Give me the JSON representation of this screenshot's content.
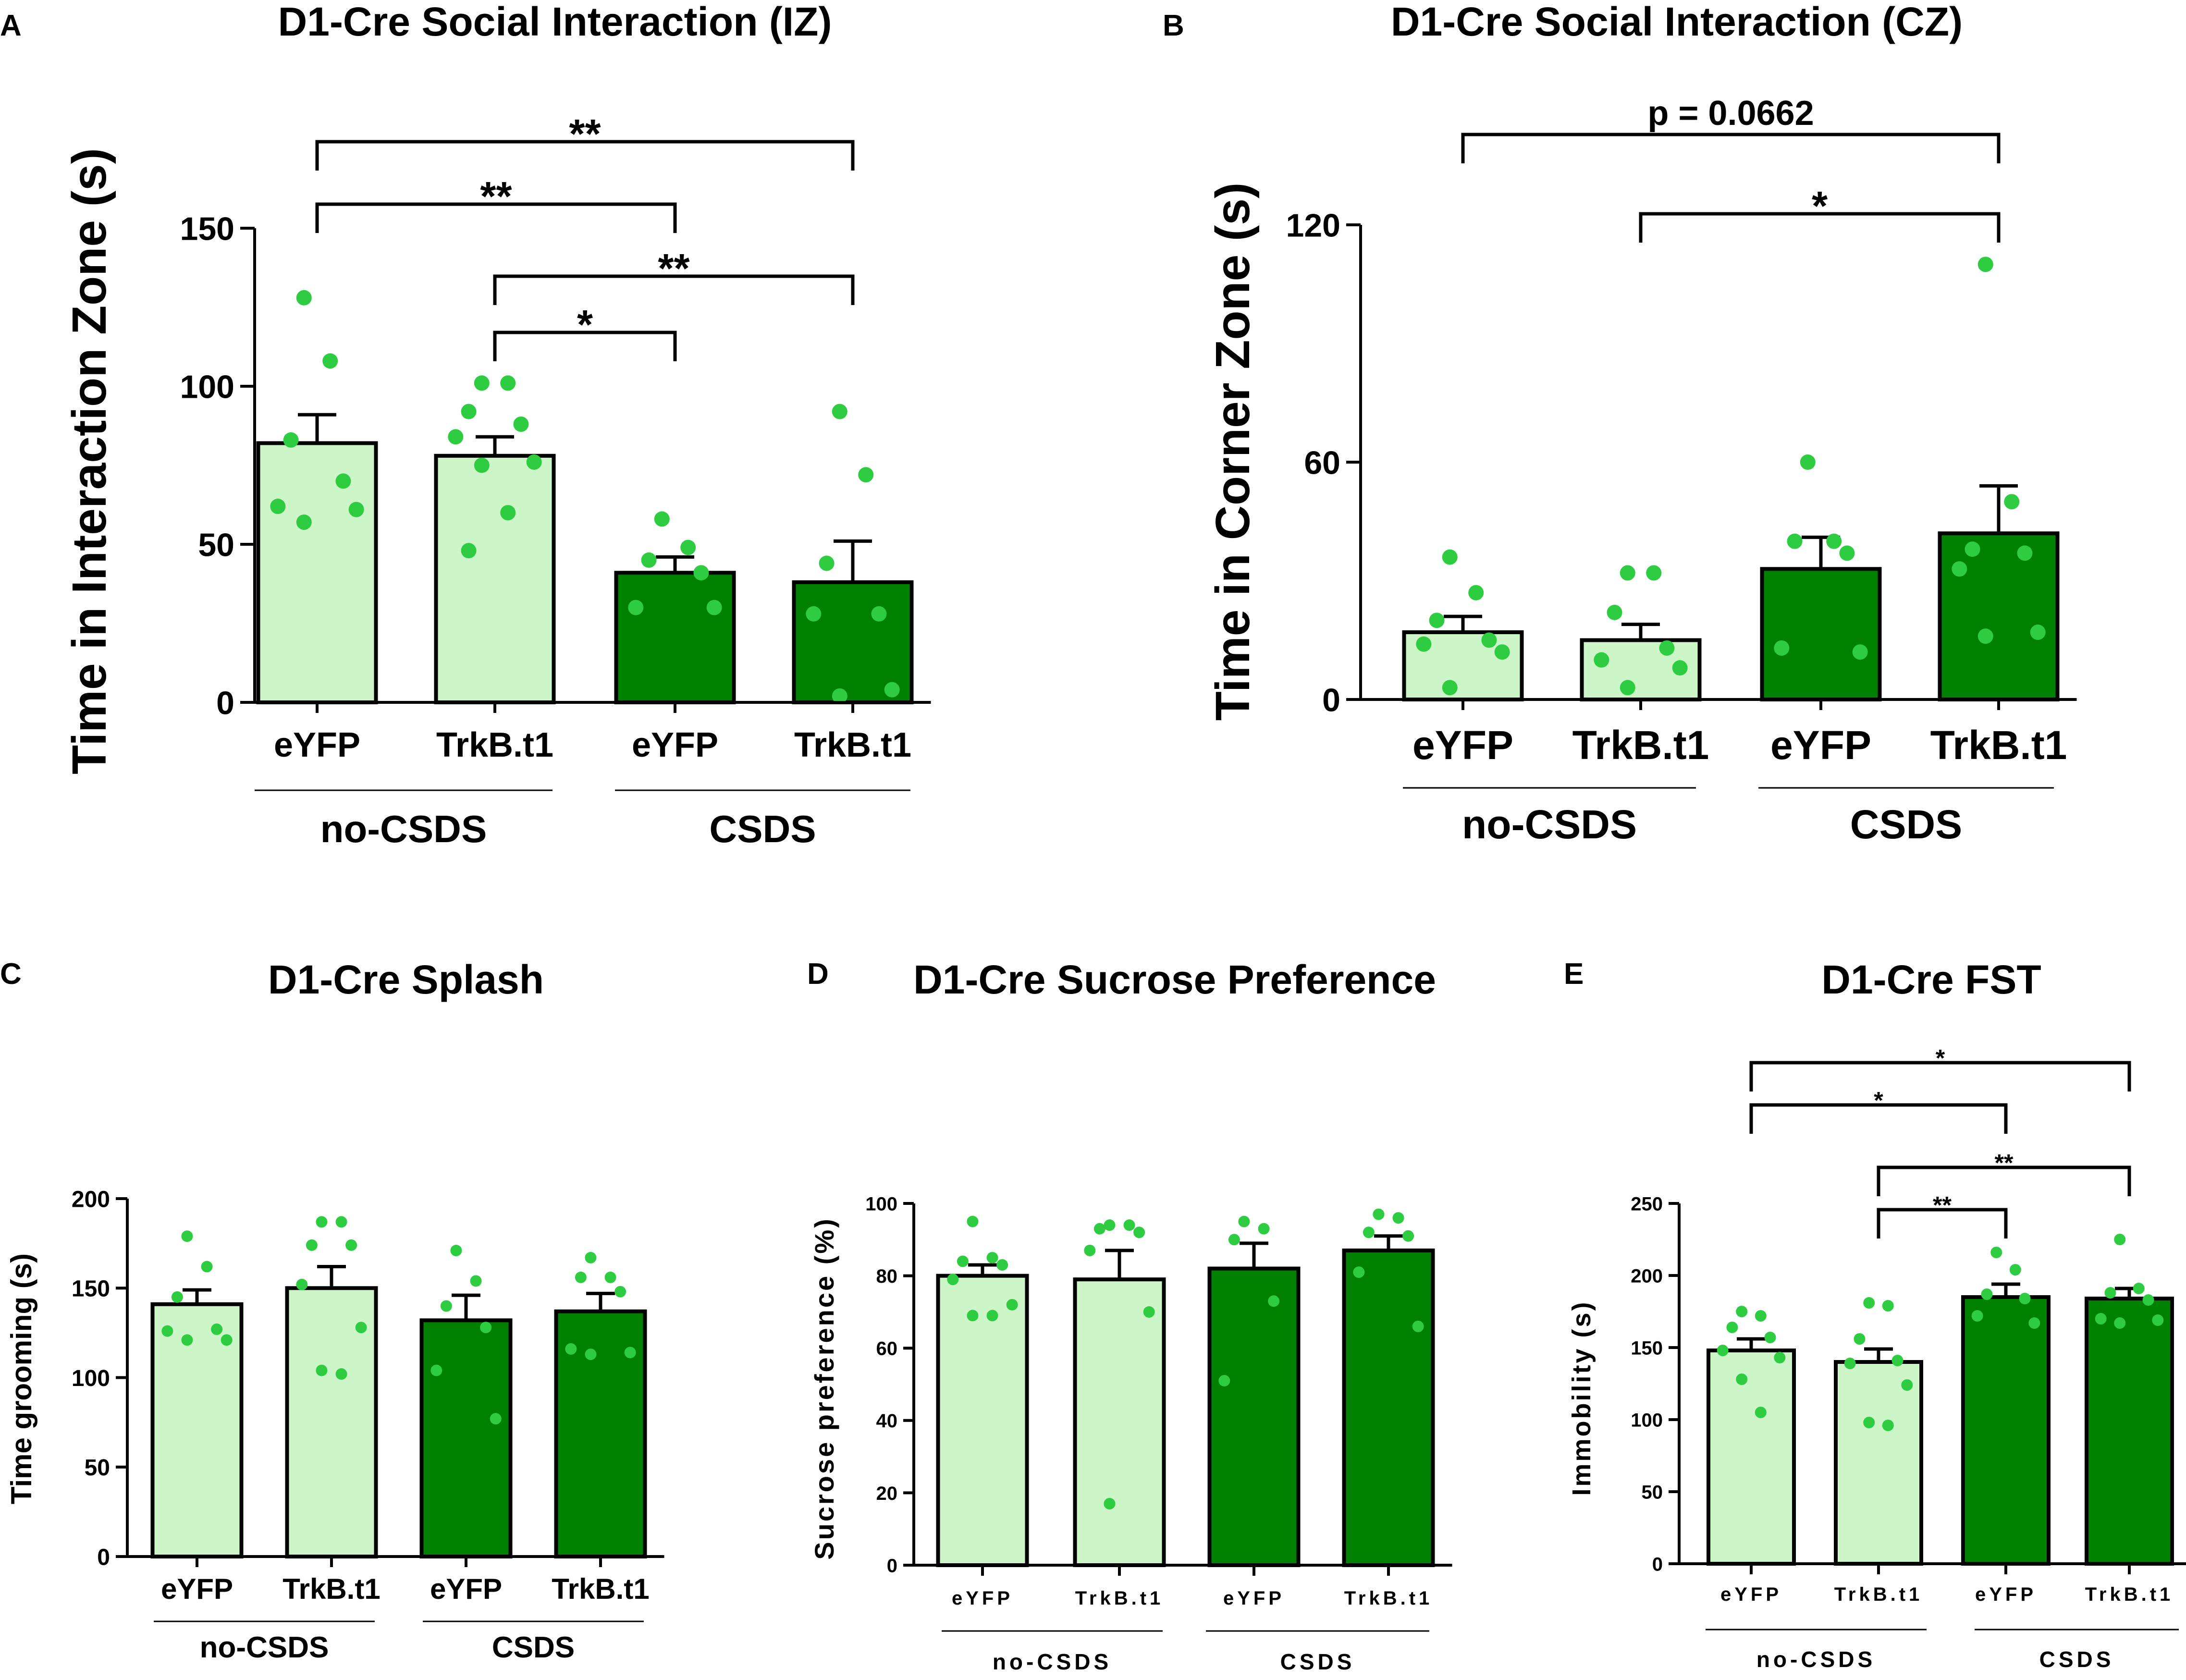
{
  "colors": {
    "light": "#ccf5c8",
    "dark": "#008000",
    "dot": "#2ecc40",
    "ink": "#000000"
  },
  "chart_data": [
    {
      "panel": "A",
      "type": "bar",
      "title": "D1-Cre Social Interaction (IZ)",
      "ylabel": "Time in Interaction Zone (s)",
      "ylim": [
        0,
        150
      ],
      "yticks": [
        0,
        50,
        100,
        150
      ],
      "categories": [
        "eYFP",
        "TrkB.t1",
        "eYFP",
        "TrkB.t1"
      ],
      "groups": [
        "no-CSDS",
        "CSDS"
      ],
      "values": [
        82,
        78,
        41,
        38
      ],
      "errors": [
        9,
        6,
        5,
        13
      ],
      "points": [
        [
          128,
          108,
          83,
          70,
          62,
          61,
          57
        ],
        [
          101,
          101,
          92,
          88,
          84,
          76,
          75,
          60,
          48
        ],
        [
          58,
          49,
          45,
          41,
          30,
          30
        ],
        [
          92,
          72,
          44,
          28,
          28,
          4,
          2
        ]
      ],
      "significance": [
        {
          "from": 0,
          "to": 3,
          "label": "**"
        },
        {
          "from": 0,
          "to": 2,
          "label": "**"
        },
        {
          "from": 1,
          "to": 3,
          "label": "**"
        },
        {
          "from": 1,
          "to": 2,
          "label": "*"
        }
      ]
    },
    {
      "panel": "B",
      "type": "bar",
      "title": "D1-Cre Social Interaction (CZ)",
      "ylabel": "Time in Corner Zone (s)",
      "ylim": [
        0,
        120
      ],
      "yticks": [
        0,
        60,
        120
      ],
      "categories": [
        "eYFP",
        "TrkB.t1",
        "eYFP",
        "TrkB.t1"
      ],
      "groups": [
        "no-CSDS",
        "CSDS"
      ],
      "values": [
        17,
        15,
        33,
        42
      ],
      "errors": [
        4,
        4,
        8,
        12
      ],
      "points": [
        [
          36,
          27,
          20,
          15,
          14,
          12,
          3
        ],
        [
          32,
          32,
          22,
          13,
          10,
          8,
          3
        ],
        [
          60,
          40,
          40,
          37,
          13,
          12
        ],
        [
          110,
          50,
          38,
          37,
          33,
          17,
          16
        ]
      ],
      "significance": [
        {
          "from": 0,
          "to": 3,
          "label": "p = 0.0662"
        },
        {
          "from": 1,
          "to": 3,
          "label": "*"
        }
      ]
    },
    {
      "panel": "C",
      "type": "bar",
      "title": "D1-Cre Splash",
      "ylabel": "Time grooming (s)",
      "ylim": [
        0,
        200
      ],
      "yticks": [
        0,
        50,
        100,
        150,
        200
      ],
      "categories": [
        "eYFP",
        "TrkB.t1",
        "eYFP",
        "TrkB.t1"
      ],
      "groups": [
        "no-CSDS",
        "CSDS"
      ],
      "values": [
        141,
        150,
        132,
        137
      ],
      "errors": [
        8,
        12,
        14,
        10
      ],
      "points": [
        [
          179,
          162,
          145,
          127,
          126,
          121,
          121
        ],
        [
          187,
          187,
          174,
          174,
          152,
          128,
          104,
          102
        ],
        [
          171,
          154,
          140,
          128,
          104,
          77
        ],
        [
          167,
          156,
          156,
          148,
          116,
          114,
          113
        ]
      ],
      "significance": []
    },
    {
      "panel": "D",
      "type": "bar",
      "title": "D1-Cre Sucrose Preference",
      "ylabel": "Sucrose preference (%)",
      "ylim": [
        0,
        100
      ],
      "yticks": [
        0,
        20,
        40,
        60,
        80,
        100
      ],
      "categories": [
        "eYFP",
        "TrkB.t1",
        "eYFP",
        "TrkB.t1"
      ],
      "groups": [
        "no-CSDS",
        "CSDS"
      ],
      "values": [
        80,
        79,
        82,
        87
      ],
      "errors": [
        3,
        8,
        7,
        4
      ],
      "points": [
        [
          95,
          85,
          84,
          83,
          79,
          72,
          69,
          69
        ],
        [
          94,
          94,
          93,
          92,
          87,
          70,
          17
        ],
        [
          95,
          93,
          90,
          73,
          51
        ],
        [
          97,
          96,
          92,
          91,
          81,
          66
        ]
      ],
      "significance": []
    },
    {
      "panel": "E",
      "type": "bar",
      "title": "D1-Cre FST",
      "ylabel": "Immobility (s)",
      "ylim": [
        0,
        250
      ],
      "yticks": [
        0,
        50,
        100,
        150,
        200,
        250
      ],
      "categories": [
        "eYFP",
        "TrkB.t1",
        "eYFP",
        "TrkB.t1"
      ],
      "groups": [
        "no-CSDS",
        "CSDS"
      ],
      "values": [
        148,
        140,
        185,
        184
      ],
      "errors": [
        8,
        9,
        9,
        7
      ],
      "points": [
        [
          175,
          172,
          164,
          157,
          148,
          143,
          128,
          105
        ],
        [
          181,
          179,
          156,
          141,
          139,
          124,
          98,
          96
        ],
        [
          216,
          204,
          187,
          184,
          172,
          167
        ],
        [
          225,
          191,
          188,
          183,
          170,
          169,
          167
        ]
      ],
      "significance": [
        {
          "from": 0,
          "to": 3,
          "label": "*"
        },
        {
          "from": 0,
          "to": 2,
          "label": "*"
        },
        {
          "from": 1,
          "to": 3,
          "label": "**"
        },
        {
          "from": 1,
          "to": 2,
          "label": "**"
        }
      ]
    }
  ]
}
